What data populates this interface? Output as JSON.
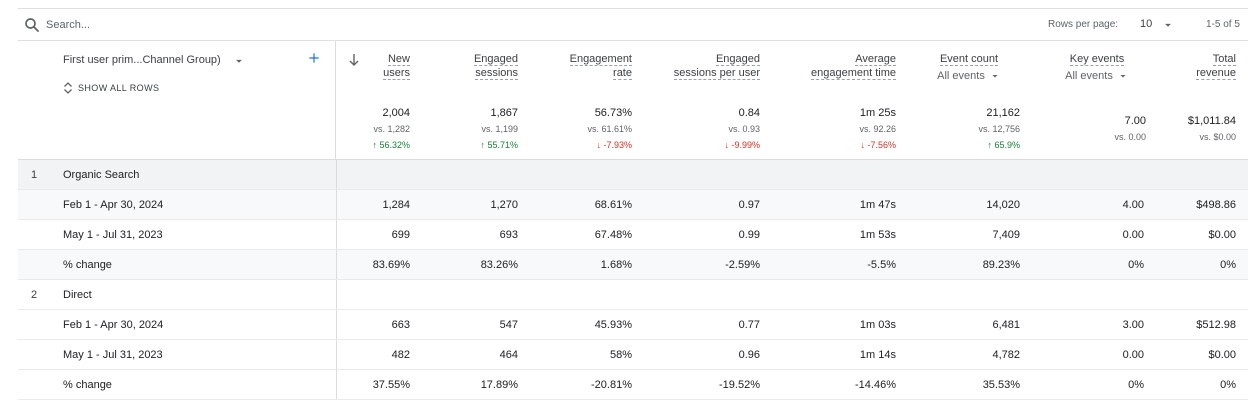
{
  "search": {
    "placeholder": "Search..."
  },
  "pagination": {
    "rows_label": "Rows per page:",
    "rows_value": "10",
    "range": "1-5 of 5"
  },
  "dimension": {
    "label": "First user prim...Channel Group)",
    "show_all": "SHOW ALL ROWS"
  },
  "metrics": [
    {
      "title1": "New",
      "title2": "users",
      "total": "2,004",
      "vs": "vs. 1,282",
      "delta": "56.32%",
      "dir": "up"
    },
    {
      "title1": "Engaged",
      "title2": "sessions",
      "total": "1,867",
      "vs": "vs. 1,199",
      "delta": "55.71%",
      "dir": "up"
    },
    {
      "title1": "Engagement",
      "title2": "rate",
      "total": "56.73%",
      "vs": "vs. 61.61%",
      "delta": "-7.93%",
      "dir": "down"
    },
    {
      "title1": "Engaged",
      "title2": "sessions per user",
      "total": "0.84",
      "vs": "vs. 0.93",
      "delta": "-9.99%",
      "dir": "down"
    },
    {
      "title1": "Average",
      "title2": "engagement time",
      "total": "1m 25s",
      "vs": "vs. 92.26",
      "delta": "-7.56%",
      "dir": "down"
    },
    {
      "title1": "Event count",
      "sub": "All events",
      "total": "21,162",
      "vs": "vs. 12,756",
      "delta": "65.9%",
      "dir": "up"
    },
    {
      "title1": "Key events",
      "sub": "All events",
      "total": "7.00",
      "vs": "vs. 0.00",
      "delta": "",
      "dir": ""
    },
    {
      "title1": "Total",
      "title2": "revenue",
      "total": "$1,011.84",
      "vs": "vs. $0.00",
      "delta": "",
      "dir": ""
    }
  ],
  "rows": [
    {
      "type": "group",
      "index": "1",
      "label": "Organic Search",
      "cells": []
    },
    {
      "type": "sub",
      "label": "Feb 1 - Apr 30, 2024",
      "cells": [
        "1,284",
        "1,270",
        "68.61%",
        "0.97",
        "1m 47s",
        "14,020",
        "4.00",
        "$498.86"
      ]
    },
    {
      "type": "plain",
      "label": "May 1 - Jul 31, 2023",
      "cells": [
        "699",
        "693",
        "67.48%",
        "0.99",
        "1m 53s",
        "7,409",
        "0.00",
        "$0.00"
      ]
    },
    {
      "type": "sub",
      "label": "% change",
      "cells": [
        "83.69%",
        "83.26%",
        "1.68%",
        "-2.59%",
        "-5.5%",
        "89.23%",
        "0%",
        "0%"
      ]
    },
    {
      "type": "plain",
      "index": "2",
      "label": "Direct",
      "cells": []
    },
    {
      "type": "plain",
      "label": "Feb 1 - Apr 30, 2024",
      "cells": [
        "663",
        "547",
        "45.93%",
        "0.77",
        "1m 03s",
        "6,481",
        "3.00",
        "$512.98"
      ]
    },
    {
      "type": "plain",
      "label": "May 1 - Jul 31, 2023",
      "cells": [
        "482",
        "464",
        "58%",
        "0.96",
        "1m 14s",
        "4,782",
        "0.00",
        "$0.00"
      ]
    },
    {
      "type": "plain",
      "label": "% change",
      "cells": [
        "37.55%",
        "17.89%",
        "-20.81%",
        "-19.52%",
        "-14.46%",
        "35.53%",
        "0%",
        "0%"
      ]
    }
  ],
  "colors": {
    "up": "#188038",
    "down": "#d93025",
    "accent": "#1a73e8"
  }
}
